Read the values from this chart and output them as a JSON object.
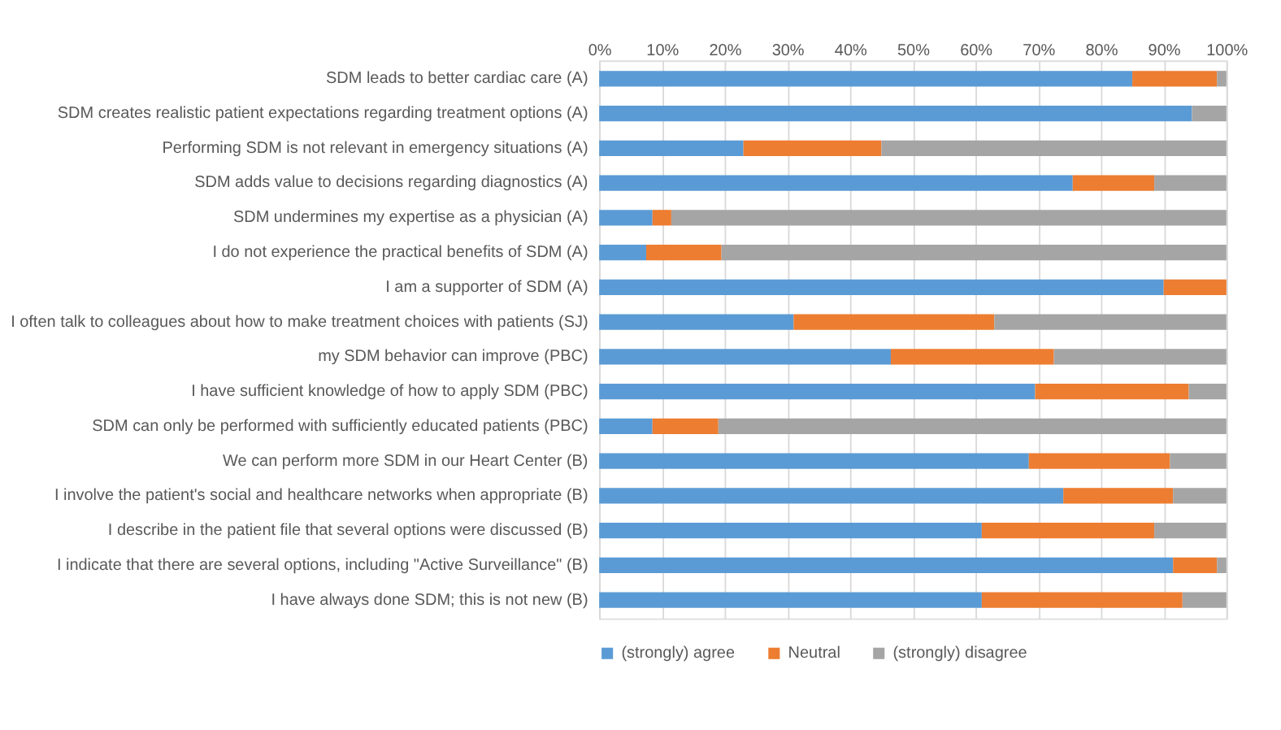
{
  "chart_data": {
    "type": "bar",
    "orientation": "horizontal",
    "stacked": true,
    "categories": [
      "SDM leads to better cardiac care (A)",
      "SDM creates realistic patient expectations regarding treatment options (A)",
      "Performing SDM is not relevant in emergency situations (A)",
      "SDM adds value to decisions regarding diagnostics (A)",
      "SDM undermines my expertise as a physician (A)",
      "I do not experience the practical benefits of SDM (A)",
      "I am a supporter of SDM (A)",
      "I often talk to colleagues about how to make treatment choices with patients (SJ)",
      "my SDM behavior can improve (PBC)",
      "I have sufficient knowledge of how to apply SDM (PBC)",
      "SDM can only be performed with sufficiently educated patients (PBC)",
      "We can perform more SDM in our Heart Center (B)",
      "I involve the patient's social and healthcare networks when appropriate (B)",
      "I describe in the patient file that several options were discussed (B)",
      "I indicate that there are several options, including \"Active Surveillance\" (B)",
      "I have always done SDM; this is not new (B)"
    ],
    "series": [
      {
        "name": "(strongly) agree",
        "color": "#5b9bd5",
        "values": [
          85,
          94.5,
          23,
          75.5,
          8.5,
          7.5,
          90,
          31,
          46.5,
          69.5,
          8.5,
          68.5,
          74,
          61,
          91.5,
          61
        ]
      },
      {
        "name": "Neutral",
        "color": "#ed7d31",
        "values": [
          13.5,
          0,
          22,
          13,
          3,
          12,
          10,
          32,
          26,
          24.5,
          10.5,
          22.5,
          17.5,
          27.5,
          7,
          32
        ]
      },
      {
        "name": "(strongly) disagree",
        "color": "#a5a5a5",
        "values": [
          1.5,
          5.5,
          55,
          11.5,
          88.5,
          80.5,
          0,
          37,
          27.5,
          6,
          81,
          9,
          8.5,
          11.5,
          1.5,
          7
        ]
      }
    ],
    "xlim": [
      0,
      100
    ],
    "xticks": [
      {
        "value": 0,
        "label": "0%"
      },
      {
        "value": 10,
        "label": "10%"
      },
      {
        "value": 20,
        "label": "20%"
      },
      {
        "value": 30,
        "label": "30%"
      },
      {
        "value": 40,
        "label": "40%"
      },
      {
        "value": 50,
        "label": "50%"
      },
      {
        "value": 60,
        "label": "60%"
      },
      {
        "value": 70,
        "label": "70%"
      },
      {
        "value": 80,
        "label": "80%"
      },
      {
        "value": 90,
        "label": "90%"
      },
      {
        "value": 100,
        "label": "100%"
      }
    ],
    "grid": "x",
    "legend": "bottom"
  }
}
